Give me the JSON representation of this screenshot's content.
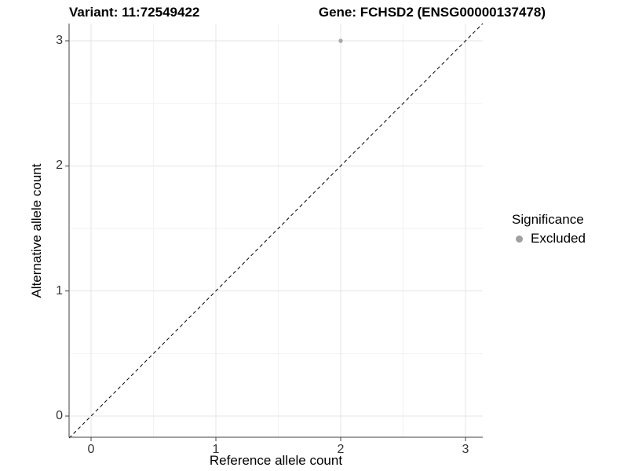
{
  "chart_data": {
    "type": "scatter",
    "title_left": "Variant: 11:72549422",
    "title_right": "Gene: FCHSD2 (ENSG00000137478)",
    "xlabel": "Reference allele count",
    "ylabel": "Alternative allele count",
    "xlim": [
      -0.17,
      3.17
    ],
    "ylim": [
      -0.17,
      3.17
    ],
    "xticks": [
      "0",
      "1",
      "2",
      "3"
    ],
    "yticks": [
      "0",
      "1",
      "2",
      "3"
    ],
    "grid": "major+minor",
    "reference_line": {
      "type": "abline",
      "slope": 1,
      "intercept": 0,
      "style": "dashed",
      "color": "#000000"
    },
    "series": [
      {
        "name": "Excluded",
        "color": "#a8a8a8",
        "points": [
          {
            "x": 2,
            "y": 3
          }
        ]
      }
    ],
    "legend": {
      "title": "Significance",
      "position": "right",
      "entries": [
        {
          "label": "Excluded",
          "color": "#a0a0a0"
        }
      ]
    },
    "colors": {
      "background": "#ffffff",
      "grid_major": "#e4e4e4",
      "grid_minor": "#f2f2f2",
      "axis_line": "#404040",
      "tick_text": "#333333",
      "title_text": "#000000"
    }
  }
}
